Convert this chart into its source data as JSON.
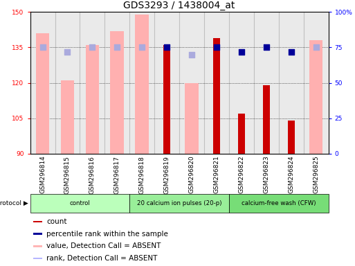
{
  "title": "GDS3293 / 1438004_at",
  "samples": [
    "GSM296814",
    "GSM296815",
    "GSM296816",
    "GSM296817",
    "GSM296818",
    "GSM296819",
    "GSM296820",
    "GSM296821",
    "GSM296822",
    "GSM296823",
    "GSM296824",
    "GSM296825"
  ],
  "pink_bars": [
    141,
    121,
    136,
    142,
    149,
    null,
    120,
    null,
    null,
    null,
    null,
    138
  ],
  "red_bars": [
    null,
    null,
    null,
    null,
    null,
    136,
    null,
    139,
    107,
    119,
    104,
    null
  ],
  "blue_dots_vals": [
    null,
    null,
    null,
    null,
    null,
    135,
    null,
    135,
    133,
    135,
    133,
    null
  ],
  "lightblue_dots_vals": [
    135,
    133,
    135,
    135,
    135,
    null,
    132,
    null,
    null,
    null,
    null,
    135
  ],
  "ylim_left": [
    90,
    150
  ],
  "yticks_left": [
    90,
    105,
    120,
    135,
    150
  ],
  "ylim_right": [
    0,
    100
  ],
  "yticks_right": [
    0,
    25,
    50,
    75,
    100
  ],
  "ytick_right_labels": [
    "0",
    "25",
    "50",
    "75",
    "100%"
  ],
  "protocol_groups": [
    {
      "label": "control",
      "start": 0,
      "end": 3,
      "color": "#bbffbb"
    },
    {
      "label": "20 calcium ion pulses (20-p)",
      "start": 4,
      "end": 7,
      "color": "#99ee99"
    },
    {
      "label": "calcium-free wash (CFW)",
      "start": 8,
      "end": 11,
      "color": "#77dd77"
    }
  ],
  "legend_items": [
    {
      "label": "count",
      "color": "#cc0000"
    },
    {
      "label": "percentile rank within the sample",
      "color": "#000099"
    },
    {
      "label": "value, Detection Call = ABSENT",
      "color": "#ffb6b6"
    },
    {
      "label": "rank, Detection Call = ABSENT",
      "color": "#b6b6ff"
    }
  ],
  "pink_color": "#ffb0b0",
  "red_color": "#cc0000",
  "blue_color": "#000099",
  "lightblue_color": "#aaaadd",
  "dot_size": 28,
  "title_fontsize": 10,
  "tick_fontsize": 6.5,
  "legend_fontsize": 7.5
}
